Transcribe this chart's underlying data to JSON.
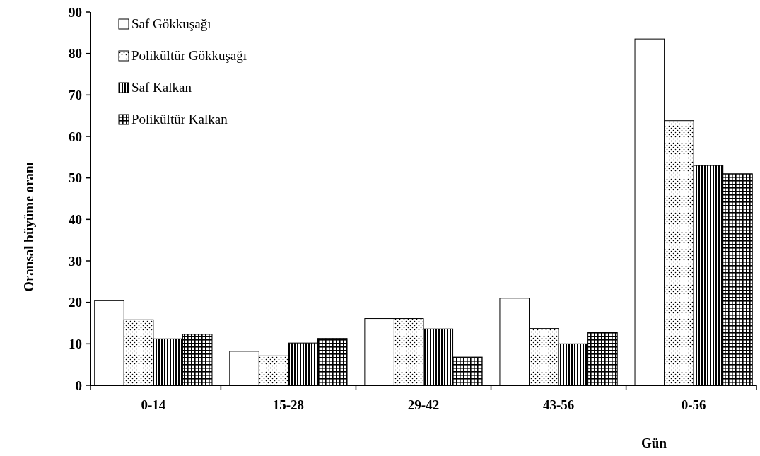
{
  "chart_data": {
    "type": "bar",
    "xlabel": "Gün",
    "ylabel": "Oransal büyüme oranı",
    "categories": [
      "0-14",
      "15-28",
      "29-42",
      "43-56",
      "0-56"
    ],
    "series": [
      {
        "name": "Saf Gökkuşağı",
        "color": "#ffffff",
        "values": [
          20.4,
          8.2,
          16.1,
          21.0,
          83.5
        ]
      },
      {
        "name": "Polikültür Gökkuşağı",
        "color": "#000000",
        "values": [
          15.8,
          7.1,
          16.1,
          13.7,
          63.8
        ]
      },
      {
        "name": "Saf Kalkan",
        "color": "#000000",
        "values": [
          11.2,
          10.2,
          13.6,
          10.0,
          53.0
        ]
      },
      {
        "name": "Polikültür Kalkan",
        "color": "#000000",
        "values": [
          12.3,
          11.3,
          6.8,
          12.7,
          51.0
        ]
      }
    ],
    "ylim": [
      0,
      90
    ],
    "yticks": [
      0,
      10,
      20,
      30,
      40,
      50,
      60,
      70,
      80,
      90
    ],
    "legend": "top left"
  }
}
